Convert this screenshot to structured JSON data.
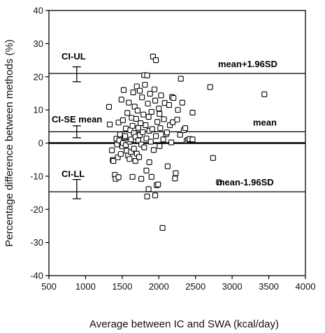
{
  "chart_data": {
    "type": "scatter",
    "title": "",
    "xlabel": "Average between IC and SWA (kcal/day)",
    "ylabel": "Percentage difference between methods (%)",
    "xlim": [
      500,
      4000
    ],
    "ylim": [
      -40,
      40
    ],
    "xticks": [
      500,
      1000,
      1500,
      2000,
      2500,
      3000,
      3500,
      4000
    ],
    "yticks": [
      -40,
      -30,
      -20,
      -10,
      0,
      10,
      20,
      30,
      40
    ],
    "grid": false,
    "marker": "open-square",
    "reference_lines": [
      {
        "label": "mean+1.96SD",
        "y": 21
      },
      {
        "label": "mean",
        "y": 3.4
      },
      {
        "label": "",
        "y": 0
      },
      {
        "label": "mean-1.96SD",
        "y": -14.7
      }
    ],
    "error_bars": [
      {
        "label": "CI-UL",
        "x": 880,
        "low": 18.5,
        "high": 23
      },
      {
        "label": "CI-SE mean",
        "x": 880,
        "low": 1.6,
        "high": 5.2
      },
      {
        "label": "CI-LL",
        "x": 880,
        "low": -16.8,
        "high": -11
      }
    ],
    "points": [
      [
        1320,
        10.9
      ],
      [
        1330,
        5.6
      ],
      [
        1360,
        -2.2
      ],
      [
        1370,
        -5.1
      ],
      [
        1380,
        -5.4
      ],
      [
        1400,
        -9.6
      ],
      [
        1410,
        -10.8
      ],
      [
        1420,
        1.3
      ],
      [
        1430,
        -0.4
      ],
      [
        1440,
        -4.3
      ],
      [
        1450,
        -10.3
      ],
      [
        1450,
        6.2
      ],
      [
        1460,
        0.8
      ],
      [
        1470,
        2.6
      ],
      [
        1480,
        -3.3
      ],
      [
        1490,
        13.1
      ],
      [
        1500,
        -1.0
      ],
      [
        1510,
        0.0
      ],
      [
        1510,
        6.9
      ],
      [
        1520,
        16.0
      ],
      [
        1530,
        1.7
      ],
      [
        1540,
        2.1
      ],
      [
        1550,
        -0.6
      ],
      [
        1550,
        4.4
      ],
      [
        1560,
        -2.3
      ],
      [
        1570,
        9.1
      ],
      [
        1580,
        -3.8
      ],
      [
        1590,
        12.2
      ],
      [
        1600,
        0.4
      ],
      [
        1600,
        -4.8
      ],
      [
        1610,
        3.9
      ],
      [
        1620,
        1.1
      ],
      [
        1620,
        -2.7
      ],
      [
        1630,
        7.6
      ],
      [
        1640,
        -10.2
      ],
      [
        1640,
        5.2
      ],
      [
        1650,
        15.3
      ],
      [
        1660,
        -1.7
      ],
      [
        1660,
        3.0
      ],
      [
        1670,
        11.0
      ],
      [
        1680,
        -5.4
      ],
      [
        1680,
        1.9
      ],
      [
        1690,
        7.3
      ],
      [
        1700,
        -3.2
      ],
      [
        1700,
        17.1
      ],
      [
        1710,
        9.8
      ],
      [
        1720,
        0.8
      ],
      [
        1720,
        4.6
      ],
      [
        1730,
        -4.2
      ],
      [
        1740,
        2.4
      ],
      [
        1740,
        15.8
      ],
      [
        1750,
        6.0
      ],
      [
        1760,
        -0.4
      ],
      [
        1760,
        -10.8
      ],
      [
        1770,
        13.8
      ],
      [
        1780,
        3.3
      ],
      [
        1790,
        8.6
      ],
      [
        1800,
        20.5
      ],
      [
        1800,
        -1.3
      ],
      [
        1810,
        17.6
      ],
      [
        1820,
        5.4
      ],
      [
        1830,
        -8.3
      ],
      [
        1830,
        1.4
      ],
      [
        1840,
        -16.1
      ],
      [
        1840,
        20.4
      ],
      [
        1850,
        11.9
      ],
      [
        1860,
        -13.9
      ],
      [
        1860,
        7.9
      ],
      [
        1870,
        -5.8
      ],
      [
        1870,
        3.7
      ],
      [
        1880,
        14.9
      ],
      [
        1890,
        0.4
      ],
      [
        1900,
        9.4
      ],
      [
        1900,
        -10.2
      ],
      [
        1910,
        4.2
      ],
      [
        1920,
        26.1
      ],
      [
        1930,
        -2.1
      ],
      [
        1940,
        16.2
      ],
      [
        1950,
        12.8
      ],
      [
        1950,
        -15.8
      ],
      [
        1960,
        25.0
      ],
      [
        1960,
        2.1
      ],
      [
        1970,
        -12.7
      ],
      [
        1980,
        6.4
      ],
      [
        1990,
        -12.5
      ],
      [
        2000,
        10.4
      ],
      [
        2010,
        8.8
      ],
      [
        2010,
        -0.9
      ],
      [
        2020,
        4.5
      ],
      [
        2030,
        14.4
      ],
      [
        2050,
        -25.6
      ],
      [
        2060,
        1.1
      ],
      [
        2070,
        7.2
      ],
      [
        2080,
        12.1
      ],
      [
        2100,
        2.7
      ],
      [
        2110,
        3.2
      ],
      [
        2120,
        -7.0
      ],
      [
        2140,
        11.5
      ],
      [
        2150,
        5.4
      ],
      [
        2170,
        0.2
      ],
      [
        2180,
        13.9
      ],
      [
        2190,
        6.3
      ],
      [
        2200,
        13.6
      ],
      [
        2220,
        -10.7
      ],
      [
        2230,
        -9.1
      ],
      [
        2250,
        7.1
      ],
      [
        2260,
        10.0
      ],
      [
        2290,
        2.5
      ],
      [
        2300,
        19.4
      ],
      [
        2320,
        12.2
      ],
      [
        2340,
        3.9
      ],
      [
        2360,
        4.5
      ],
      [
        2380,
        0.7
      ],
      [
        2400,
        1.0
      ],
      [
        2420,
        1.2
      ],
      [
        2460,
        1.1
      ],
      [
        2460,
        9.2
      ],
      [
        2700,
        16.9
      ],
      [
        2740,
        -4.5
      ],
      [
        2820,
        -11.8
      ],
      [
        3440,
        14.7
      ]
    ]
  }
}
